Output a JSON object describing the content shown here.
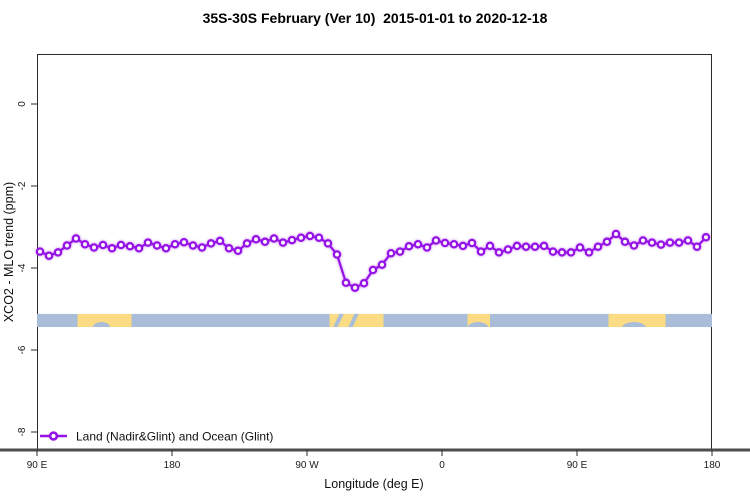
{
  "title": "35S-30S February (Ver 10)  2015-01-01 to 2020-12-18",
  "legend": {
    "label": "Land (Nadir&Glint) and Ocean (Glint)"
  },
  "chart_data": {
    "type": "line",
    "title": "35S-30S February (Ver 10)  2015-01-01 to 2020-12-18",
    "xlabel": "Longitude (deg E)",
    "ylabel": "XCO2 - MLO trend (ppm)",
    "xlim": [
      90,
      540
    ],
    "ylim": [
      -8.4,
      1.2
    ],
    "grid": false,
    "legend_position": "bottom-left-inside",
    "x_ticks": [
      {
        "lon": 90,
        "label": "90 E"
      },
      {
        "lon": 180,
        "label": "180"
      },
      {
        "lon": 270,
        "label": "90 W"
      },
      {
        "lon": 360,
        "label": "0"
      },
      {
        "lon": 450,
        "label": "90 E"
      },
      {
        "lon": 540,
        "label": "180"
      }
    ],
    "y_ticks": [
      0,
      -2,
      -4,
      -6,
      -8
    ],
    "series": [
      {
        "name": "Land (Nadir&Glint) and Ocean (Glint)",
        "color": "#9613E6",
        "marker": "open-circle",
        "points": [
          [
            92,
            -3.6
          ],
          [
            98,
            -3.7
          ],
          [
            104,
            -3.62
          ],
          [
            110,
            -3.45
          ],
          [
            116,
            -3.28
          ],
          [
            122,
            -3.42
          ],
          [
            128,
            -3.5
          ],
          [
            134,
            -3.44
          ],
          [
            140,
            -3.52
          ],
          [
            146,
            -3.44
          ],
          [
            152,
            -3.47
          ],
          [
            158,
            -3.52
          ],
          [
            164,
            -3.38
          ],
          [
            170,
            -3.45
          ],
          [
            176,
            -3.52
          ],
          [
            182,
            -3.42
          ],
          [
            188,
            -3.37
          ],
          [
            194,
            -3.45
          ],
          [
            200,
            -3.5
          ],
          [
            206,
            -3.4
          ],
          [
            212,
            -3.34
          ],
          [
            218,
            -3.52
          ],
          [
            224,
            -3.58
          ],
          [
            230,
            -3.4
          ],
          [
            236,
            -3.3
          ],
          [
            242,
            -3.36
          ],
          [
            248,
            -3.28
          ],
          [
            254,
            -3.38
          ],
          [
            260,
            -3.32
          ],
          [
            266,
            -3.26
          ],
          [
            272,
            -3.22
          ],
          [
            278,
            -3.26
          ],
          [
            284,
            -3.4
          ],
          [
            290,
            -3.67
          ],
          [
            296,
            -4.36
          ],
          [
            302,
            -4.48
          ],
          [
            308,
            -4.37
          ],
          [
            314,
            -4.05
          ],
          [
            320,
            -3.92
          ],
          [
            326,
            -3.64
          ],
          [
            332,
            -3.6
          ],
          [
            338,
            -3.47
          ],
          [
            344,
            -3.42
          ],
          [
            350,
            -3.5
          ],
          [
            356,
            -3.33
          ],
          [
            362,
            -3.39
          ],
          [
            368,
            -3.42
          ],
          [
            374,
            -3.46
          ],
          [
            380,
            -3.39
          ],
          [
            386,
            -3.6
          ],
          [
            392,
            -3.46
          ],
          [
            398,
            -3.62
          ],
          [
            404,
            -3.55
          ],
          [
            410,
            -3.46
          ],
          [
            416,
            -3.48
          ],
          [
            422,
            -3.48
          ],
          [
            428,
            -3.46
          ],
          [
            434,
            -3.6
          ],
          [
            440,
            -3.62
          ],
          [
            446,
            -3.62
          ],
          [
            452,
            -3.5
          ],
          [
            458,
            -3.62
          ],
          [
            464,
            -3.48
          ],
          [
            470,
            -3.36
          ],
          [
            476,
            -3.17
          ],
          [
            482,
            -3.36
          ],
          [
            488,
            -3.45
          ],
          [
            494,
            -3.33
          ],
          [
            500,
            -3.38
          ],
          [
            506,
            -3.43
          ],
          [
            512,
            -3.38
          ],
          [
            518,
            -3.38
          ],
          [
            524,
            -3.33
          ],
          [
            530,
            -3.48
          ],
          [
            536,
            -3.25
          ]
        ]
      }
    ],
    "land_ocean_band": {
      "description": "map strip of latitude band: ocean vs land",
      "ocean_color": "#A9BDD8",
      "land_color": "#FBDC84",
      "value_top": -5.12,
      "value_bottom": -5.44,
      "land_patches_lon": [
        [
          117,
          153
        ],
        [
          285,
          321
        ],
        [
          377,
          392
        ],
        [
          471,
          509
        ]
      ],
      "inlets": [
        {
          "type": "ellipse",
          "lon_center": 133,
          "half_deg": 6,
          "edge": "bottom"
        },
        {
          "type": "stripe",
          "lon_center": 291,
          "half_deg": 2
        },
        {
          "type": "stripe",
          "lon_center": 301,
          "half_deg": 2
        },
        {
          "type": "ellipse",
          "lon_center": 384,
          "half_deg": 7,
          "edge": "bottom"
        },
        {
          "type": "ellipse",
          "lon_center": 488,
          "half_deg": 8,
          "edge": "bottom"
        }
      ]
    },
    "axis_colors": {
      "frame": "#2b2b2b",
      "heavy_baseline": "#4d4d4d",
      "tick_text": "#1a1a1a"
    }
  }
}
